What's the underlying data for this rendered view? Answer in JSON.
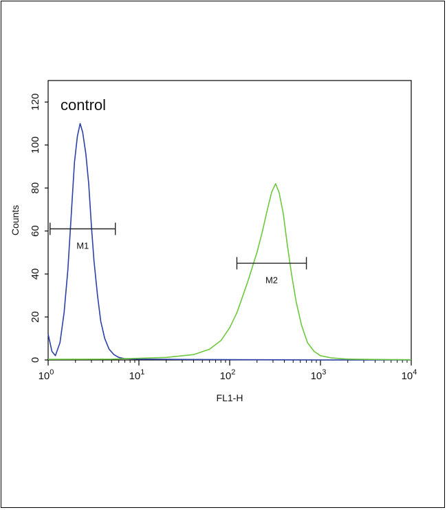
{
  "chart_data": {
    "type": "line",
    "title": "control",
    "xlabel": "FL1-H",
    "ylabel": "Counts",
    "x_scale": "log",
    "xlim": [
      1,
      10000
    ],
    "ylim": [
      0,
      130
    ],
    "x_ticks": [
      {
        "base": "10",
        "exp": "0",
        "value": 1
      },
      {
        "base": "10",
        "exp": "1",
        "value": 10
      },
      {
        "base": "10",
        "exp": "2",
        "value": 100
      },
      {
        "base": "10",
        "exp": "3",
        "value": 1000
      },
      {
        "base": "10",
        "exp": "4",
        "value": 10000
      }
    ],
    "y_ticks": [
      "0",
      "20",
      "40",
      "60",
      "80",
      "100",
      "120"
    ],
    "grid": false,
    "series": [
      {
        "color": "#2b3fa8",
        "points": [
          [
            1.0,
            12
          ],
          [
            1.1,
            4
          ],
          [
            1.2,
            2
          ],
          [
            1.35,
            8
          ],
          [
            1.5,
            22
          ],
          [
            1.65,
            42
          ],
          [
            1.8,
            68
          ],
          [
            1.95,
            92
          ],
          [
            2.1,
            104
          ],
          [
            2.25,
            110
          ],
          [
            2.4,
            106
          ],
          [
            2.6,
            96
          ],
          [
            2.8,
            82
          ],
          [
            3.0,
            62
          ],
          [
            3.2,
            46
          ],
          [
            3.5,
            30
          ],
          [
            3.8,
            18
          ],
          [
            4.2,
            10
          ],
          [
            4.7,
            5
          ],
          [
            5.3,
            2.5
          ],
          [
            6.0,
            1.2
          ],
          [
            7.0,
            0.6
          ],
          [
            10,
            0.4
          ],
          [
            20,
            0.3
          ],
          [
            50,
            0.2
          ],
          [
            200,
            0.1
          ],
          [
            1000,
            0
          ],
          [
            10000,
            0
          ]
        ]
      },
      {
        "color": "#6cc83c",
        "points": [
          [
            1,
            0.3
          ],
          [
            5,
            0.4
          ],
          [
            10,
            0.8
          ],
          [
            20,
            1.2
          ],
          [
            40,
            2.5
          ],
          [
            60,
            5
          ],
          [
            80,
            9
          ],
          [
            100,
            15
          ],
          [
            120,
            22
          ],
          [
            140,
            30
          ],
          [
            160,
            37
          ],
          [
            180,
            44
          ],
          [
            200,
            50
          ],
          [
            230,
            60
          ],
          [
            260,
            70
          ],
          [
            290,
            78
          ],
          [
            320,
            82
          ],
          [
            350,
            78
          ],
          [
            390,
            68
          ],
          [
            430,
            54
          ],
          [
            480,
            40
          ],
          [
            540,
            27
          ],
          [
            620,
            16
          ],
          [
            720,
            8
          ],
          [
            850,
            4
          ],
          [
            1000,
            2
          ],
          [
            1300,
            1
          ],
          [
            2000,
            0.4
          ],
          [
            5000,
            0.2
          ],
          [
            10000,
            0.1
          ]
        ]
      }
    ],
    "markers": [
      {
        "label": "M1",
        "x_start": 1.05,
        "x_end": 5.5,
        "y": 61
      },
      {
        "label": "M2",
        "x_start": 120,
        "x_end": 700,
        "y": 45
      }
    ]
  }
}
